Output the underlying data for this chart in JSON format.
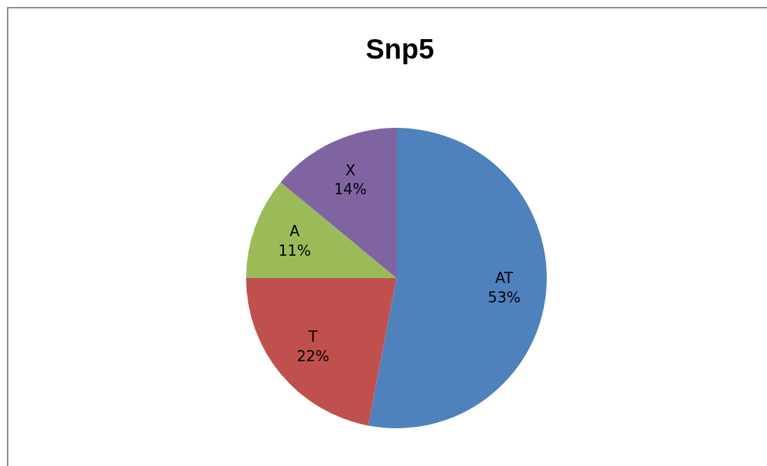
{
  "chart_data": {
    "type": "pie",
    "title": "Snp5",
    "categories": [
      "AT",
      "T",
      "A",
      "X"
    ],
    "values": [
      53,
      22,
      11,
      14
    ],
    "value_labels": [
      "53%",
      "22%",
      "11%",
      "14%"
    ],
    "colors": [
      "#4f81bd",
      "#c0504d",
      "#9bbb59",
      "#8064a2"
    ],
    "legend": false
  }
}
